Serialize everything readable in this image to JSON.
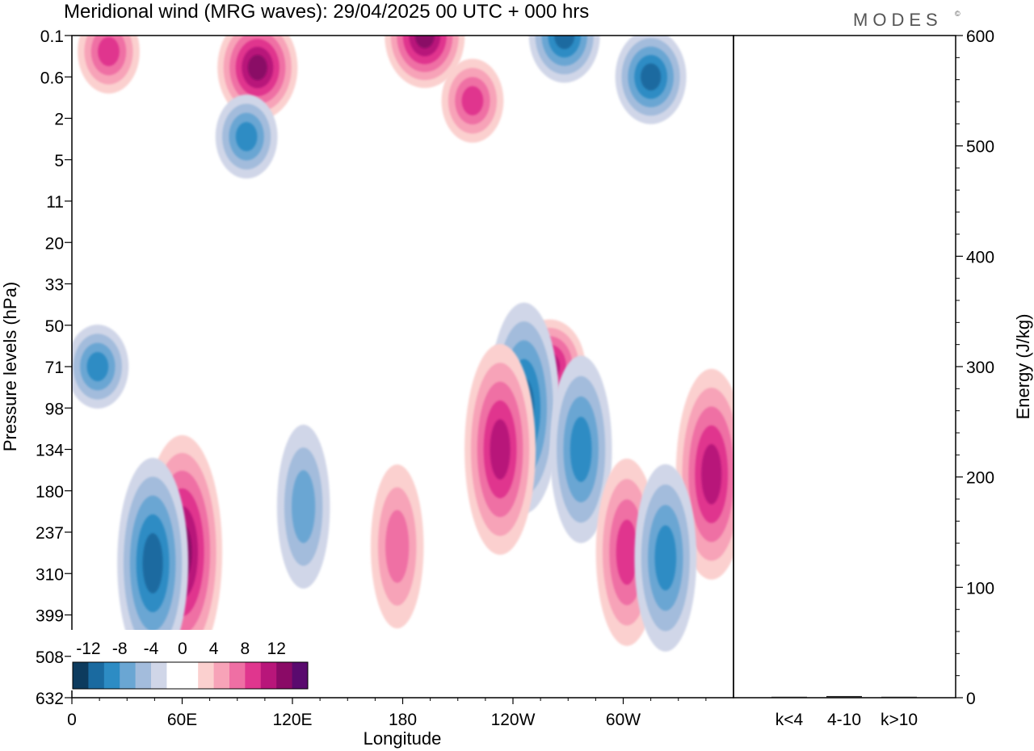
{
  "header": {
    "title": "Meridional wind (MRG waves):  29/04/2025  00 UTC  + 000 hrs",
    "logo": "MODES",
    "logo_mark": "©"
  },
  "chart_data": [
    {
      "type": "heatmap",
      "title": "Meridional wind (MRG waves):  29/04/2025  00 UTC  + 000 hrs",
      "xlabel": "Longitude",
      "ylabel": "Pressure levels (hPa)",
      "x_ticks": [
        "0",
        "60E",
        "120E",
        "180",
        "120W",
        "60W"
      ],
      "x_range_deg": [
        0,
        360
      ],
      "x_tick_values_deg": [
        0,
        60,
        120,
        180,
        240,
        300
      ],
      "y_ticks": [
        "0.1",
        "0.6",
        "2",
        "5",
        "11",
        "20",
        "33",
        "50",
        "71",
        "98",
        "134",
        "180",
        "237",
        "310",
        "399",
        "508",
        "632"
      ],
      "colorbar": {
        "labels": [
          "-12",
          "-8",
          "-4",
          "0",
          "4",
          "8",
          "12"
        ],
        "colors": [
          "#0d3b5e",
          "#1a6aa0",
          "#2d8cc4",
          "#6aa6d3",
          "#a3bcdc",
          "#d0d6e8",
          "#ffffff",
          "#ffffff",
          "#fbd0cf",
          "#f7a3b8",
          "#ef6fa4",
          "#e0368e",
          "#b8167a",
          "#8a0a66",
          "#5a0a6e"
        ]
      },
      "features": [
        {
          "sign": "pos",
          "lon": 101,
          "level": 0.4,
          "peak": 14
        },
        {
          "sign": "pos",
          "lon": 192,
          "level": 0.1,
          "peak": 12
        },
        {
          "sign": "pos",
          "lon": 218,
          "level": 1.2,
          "peak": 8
        },
        {
          "sign": "neg",
          "lon": 268,
          "level": 0.1,
          "peak": -10
        },
        {
          "sign": "neg",
          "lon": 315,
          "level": 0.6,
          "peak": -10
        },
        {
          "sign": "neg",
          "lon": 95,
          "level": 3,
          "peak": -8
        },
        {
          "sign": "pos",
          "lon": 20,
          "level": 0.2,
          "peak": 8
        },
        {
          "sign": "neg",
          "lon": 14,
          "level": 71,
          "peak": -7
        },
        {
          "sign": "pos",
          "lon": 260,
          "level": 71,
          "peak": 10
        },
        {
          "sign": "neg",
          "lon": 246,
          "level": 98,
          "peak": -9
        },
        {
          "sign": "neg",
          "lon": 277,
          "level": 134,
          "peak": -8
        },
        {
          "sign": "pos",
          "lon": 233,
          "level": 134,
          "peak": 10
        },
        {
          "sign": "pos",
          "lon": 60,
          "level": 270,
          "peak": 14
        },
        {
          "sign": "neg",
          "lon": 44,
          "level": 290,
          "peak": -9
        },
        {
          "sign": "pos",
          "lon": 348,
          "level": 160,
          "peak": 9
        },
        {
          "sign": "pos",
          "lon": 302,
          "level": 270,
          "peak": 8
        },
        {
          "sign": "neg",
          "lon": 323,
          "level": 280,
          "peak": -7
        },
        {
          "sign": "pos",
          "lon": 177,
          "level": 260,
          "peak": 6
        },
        {
          "sign": "neg",
          "lon": 126,
          "level": 200,
          "peak": -6
        }
      ]
    },
    {
      "type": "bar",
      "ylabel": "Energy (J/kg)",
      "categories": [
        "k<4",
        "4-10",
        "k>10"
      ],
      "values": [
        0.5,
        1.5,
        0.3
      ],
      "ylim": [
        0,
        600
      ],
      "y_ticks": [
        "0",
        "100",
        "200",
        "300",
        "400",
        "500",
        "600"
      ]
    }
  ]
}
